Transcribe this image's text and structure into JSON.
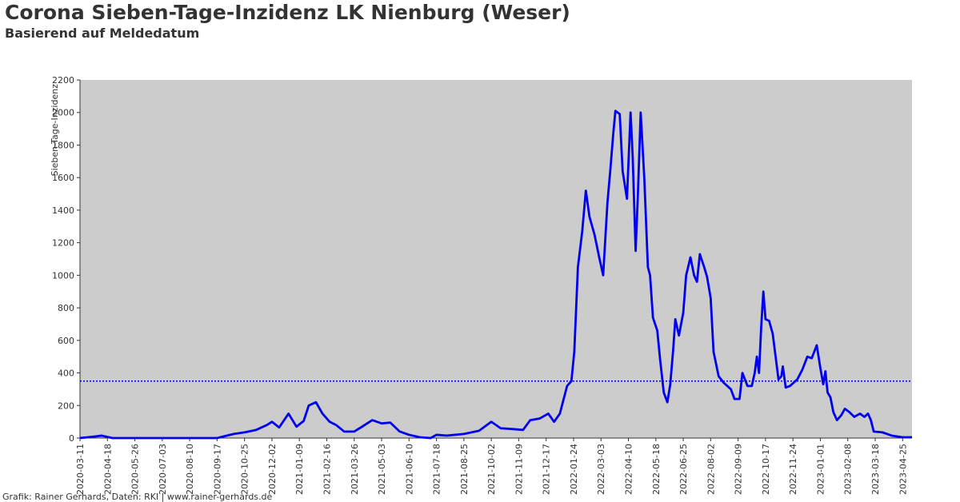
{
  "chart_data": {
    "type": "line",
    "title": "Corona Sieben-Tage-Inzidenz LK Nienburg (Weser)",
    "subtitle": "Basierend auf Meldedatum",
    "y_label": "Sieben-Tage-Inzidenz",
    "footer": "Grafik: Rainer Gerhards, Daten: RKI | www.rainer-gerhards.de",
    "x": [
      "2020-03-11",
      "2020-04-01",
      "2020-04-10",
      "2020-04-25",
      "2020-06-01",
      "2020-08-01",
      "2020-09-17",
      "2020-10-10",
      "2020-10-25",
      "2020-11-10",
      "2020-11-25",
      "2020-12-02",
      "2020-12-12",
      "2020-12-25",
      "2021-01-05",
      "2021-01-15",
      "2021-01-22",
      "2021-02-01",
      "2021-02-10",
      "2021-02-20",
      "2021-03-01",
      "2021-03-12",
      "2021-03-26",
      "2021-04-06",
      "2021-04-20",
      "2021-05-03",
      "2021-05-15",
      "2021-05-28",
      "2021-06-10",
      "2021-06-25",
      "2021-07-10",
      "2021-07-18",
      "2021-08-01",
      "2021-08-25",
      "2021-09-15",
      "2021-10-02",
      "2021-10-15",
      "2021-11-01",
      "2021-11-15",
      "2021-11-25",
      "2021-12-08",
      "2021-12-20",
      "2021-12-28",
      "2022-01-05",
      "2022-01-15",
      "2022-01-21",
      "2022-01-25",
      "2022-01-30",
      "2022-02-05",
      "2022-02-10",
      "2022-02-15",
      "2022-02-22",
      "2022-03-01",
      "2022-03-06",
      "2022-03-12",
      "2022-03-16",
      "2022-03-20",
      "2022-03-23",
      "2022-03-29",
      "2022-04-02",
      "2022-04-08",
      "2022-04-13",
      "2022-04-16",
      "2022-04-20",
      "2022-04-23",
      "2022-04-27",
      "2022-05-02",
      "2022-05-07",
      "2022-05-10",
      "2022-05-14",
      "2022-05-20",
      "2022-05-24",
      "2022-05-29",
      "2022-06-03",
      "2022-06-07",
      "2022-06-11",
      "2022-06-14",
      "2022-06-19",
      "2022-06-25",
      "2022-06-29",
      "2022-07-05",
      "2022-07-10",
      "2022-07-14",
      "2022-07-18",
      "2022-07-24",
      "2022-07-28",
      "2022-08-02",
      "2022-08-06",
      "2022-08-13",
      "2022-08-20",
      "2022-08-30",
      "2022-09-04",
      "2022-09-11",
      "2022-09-15",
      "2022-09-22",
      "2022-09-28",
      "2022-10-02",
      "2022-10-05",
      "2022-10-08",
      "2022-10-11",
      "2022-10-14",
      "2022-10-17",
      "2022-10-22",
      "2022-10-27",
      "2022-10-31",
      "2022-11-04",
      "2022-11-08",
      "2022-11-10",
      "2022-11-14",
      "2022-11-20",
      "2022-11-30",
      "2022-12-07",
      "2022-12-14",
      "2022-12-20",
      "2022-12-27",
      "2023-01-01",
      "2023-01-05",
      "2023-01-08",
      "2023-01-11",
      "2023-01-15",
      "2023-01-19",
      "2023-01-24",
      "2023-01-30",
      "2023-02-04",
      "2023-02-10",
      "2023-02-17",
      "2023-02-25",
      "2023-03-03",
      "2023-03-08",
      "2023-03-12",
      "2023-03-16",
      "2023-03-28",
      "2023-04-10",
      "2023-04-25",
      "2023-05-08"
    ],
    "series": [
      {
        "color": "#0000ee",
        "values": [
          0,
          10,
          15,
          0,
          0,
          0,
          0,
          25,
          35,
          50,
          80,
          100,
          65,
          150,
          70,
          105,
          200,
          220,
          150,
          100,
          80,
          40,
          40,
          70,
          110,
          90,
          95,
          40,
          20,
          5,
          0,
          20,
          15,
          25,
          45,
          100,
          60,
          55,
          50,
          110,
          120,
          150,
          100,
          150,
          320,
          350,
          530,
          1050,
          1270,
          1520,
          1360,
          1250,
          1100,
          1000,
          1450,
          1650,
          1870,
          2010,
          1990,
          1640,
          1470,
          2000,
          1720,
          1150,
          1480,
          2000,
          1600,
          1050,
          1000,
          740,
          660,
          480,
          280,
          220,
          330,
          540,
          730,
          630,
          770,
          1000,
          1110,
          1000,
          960,
          1130,
          1050,
          990,
          860,
          530,
          380,
          340,
          300,
          240,
          240,
          400,
          320,
          320,
          400,
          500,
          400,
          680,
          900,
          730,
          720,
          640,
          500,
          360,
          380,
          440,
          310,
          320,
          360,
          420,
          500,
          490,
          570,
          430,
          330,
          410,
          280,
          250,
          160,
          110,
          140,
          180,
          160,
          130,
          150,
          130,
          150,
          110,
          40,
          35,
          15,
          5,
          5
        ]
      }
    ],
    "reference_line": {
      "value": 350,
      "color": "#0000cc"
    },
    "xlim": [
      "2020-03-11",
      "2023-05-08"
    ],
    "xticks": [
      "2020-03-11",
      "2020-04-18",
      "2020-05-26",
      "2020-07-03",
      "2020-08-10",
      "2020-09-17",
      "2020-10-25",
      "2020-12-02",
      "2021-01-09",
      "2021-02-16",
      "2021-03-26",
      "2021-05-03",
      "2021-06-10",
      "2021-07-18",
      "2021-08-25",
      "2021-10-02",
      "2021-11-09",
      "2021-12-17",
      "2022-01-24",
      "2022-03-03",
      "2022-04-10",
      "2022-05-18",
      "2022-06-25",
      "2022-08-02",
      "2022-09-09",
      "2022-10-17",
      "2022-11-24",
      "2023-01-01",
      "2023-02-08",
      "2023-03-18",
      "2023-04-25"
    ],
    "ylim": [
      0,
      2200
    ],
    "yticks": [
      0,
      200,
      400,
      600,
      800,
      1000,
      1200,
      1400,
      1600,
      1800,
      2000,
      2200
    ],
    "plot_background": "#cccccc"
  }
}
